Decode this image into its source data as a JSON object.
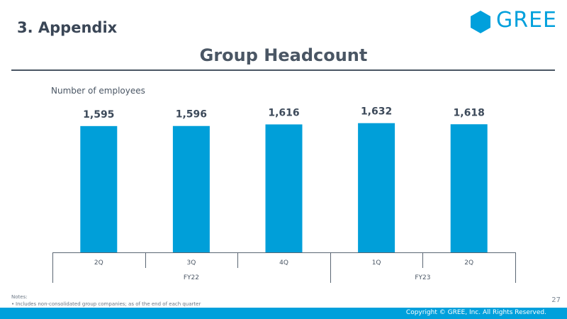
{
  "header": {
    "section_title": "3. Appendix",
    "logo_text": "GREE",
    "page_heading": "Group Headcount"
  },
  "chart_data": {
    "type": "bar",
    "title": "Group Headcount",
    "ylabel": "Number of employees",
    "categories": [
      "2Q",
      "3Q",
      "4Q",
      "1Q",
      "2Q"
    ],
    "groups": [
      {
        "label": "FY22",
        "categories": [
          "2Q",
          "3Q",
          "4Q"
        ]
      },
      {
        "label": "FY23",
        "categories": [
          "1Q",
          "2Q"
        ]
      }
    ],
    "values": [
      1595,
      1596,
      1616,
      1632,
      1618
    ],
    "data_labels": [
      "1,595",
      "1,596",
      "1,616",
      "1,632",
      "1,618"
    ],
    "bar_color": "#009fd9",
    "grid": false
  },
  "notes": {
    "heading": "Notes:",
    "items": [
      "Includes non-consolidated group companies; as of the end of each quarter"
    ]
  },
  "page_number": "27",
  "footer": {
    "copyright": "Copyright © GREE, Inc. All Rights Reserved.",
    "color": "#00a0dc"
  }
}
